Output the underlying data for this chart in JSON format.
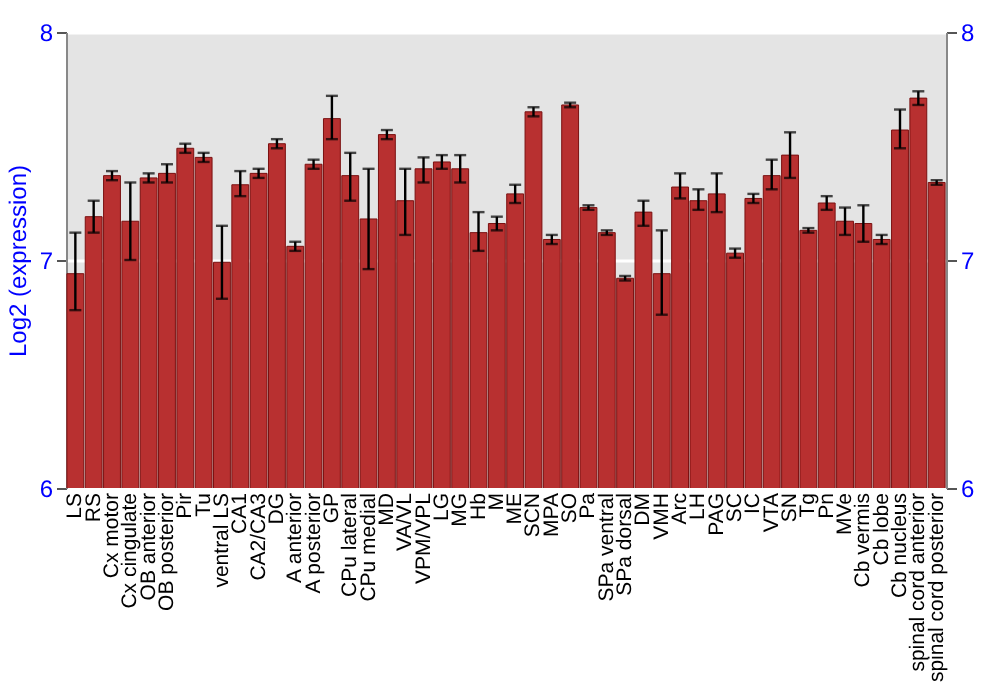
{
  "chart_data": {
    "type": "bar",
    "ylabel": "Log2 (expression)",
    "categories": [
      "LS",
      "RS",
      "Cx motor",
      "Cx cingulate",
      "OB anterior",
      "OB posterior",
      "Pir",
      "Tu",
      "ventral LS",
      "CA1",
      "CA2/CA3",
      "DG",
      "A anterior",
      "A posterior",
      "GP",
      "CPu lateral",
      "CPu medial",
      "MD",
      "VA/VL",
      "VPM/VPL",
      "LG",
      "MG",
      "Hb",
      "M",
      "ME",
      "SCN",
      "MPA",
      "SO",
      "Pa",
      "SPa ventral",
      "SPa dorsal",
      "DM",
      "VMH",
      "Arc",
      "LH",
      "PAG",
      "SC",
      "IC",
      "VTA",
      "SN",
      "Tg",
      "Pn",
      "MVe",
      "Cb vermis",
      "Cb lobe",
      "Cb nucleus",
      "spinal cord anterior",
      "spinal cord posterior"
    ],
    "values": [
      6.94,
      7.19,
      7.37,
      7.17,
      7.36,
      7.38,
      7.49,
      7.45,
      6.99,
      7.33,
      7.38,
      7.51,
      7.06,
      7.42,
      7.62,
      7.37,
      7.18,
      7.55,
      7.26,
      7.4,
      7.43,
      7.4,
      7.12,
      7.16,
      7.29,
      7.65,
      7.09,
      7.68,
      7.23,
      7.12,
      6.92,
      7.21,
      6.94,
      7.32,
      7.26,
      7.29,
      7.03,
      7.27,
      7.37,
      7.46,
      7.13,
      7.25,
      7.17,
      7.16,
      7.09,
      7.57,
      7.71,
      7.34
    ],
    "errors": [
      [
        6.78,
        7.12
      ],
      [
        7.12,
        7.26
      ],
      0.02,
      [
        7.0,
        7.34
      ],
      0.02,
      [
        7.34,
        7.42
      ],
      0.02,
      0.02,
      [
        6.83,
        7.15
      ],
      [
        7.28,
        7.39
      ],
      0.02,
      0.02,
      0.02,
      0.02,
      [
        7.53,
        7.72
      ],
      [
        7.26,
        7.47
      ],
      [
        6.96,
        7.4
      ],
      0.02,
      [
        7.11,
        7.4
      ],
      [
        7.34,
        7.45
      ],
      [
        7.4,
        7.46
      ],
      [
        7.34,
        7.46
      ],
      [
        7.04,
        7.21
      ],
      [
        7.13,
        7.19
      ],
      [
        7.25,
        7.33
      ],
      0.02,
      0.02,
      0.01,
      0.01,
      0.01,
      0.01,
      [
        7.15,
        7.26
      ],
      [
        6.76,
        7.13
      ],
      [
        7.27,
        7.38
      ],
      [
        7.22,
        7.31
      ],
      [
        7.21,
        7.38
      ],
      0.02,
      0.02,
      [
        7.31,
        7.44
      ],
      [
        7.36,
        7.56
      ],
      0.01,
      [
        7.22,
        7.28
      ],
      [
        7.11,
        7.23
      ],
      [
        7.08,
        7.24
      ],
      0.02,
      [
        7.49,
        7.66
      ],
      0.03,
      0.01
    ],
    "color": "#b83030",
    "ylim": [
      6,
      8
    ],
    "yticks": [
      6,
      7,
      8
    ],
    "y2lim": [
      6,
      8
    ],
    "y2ticks": [
      6,
      7,
      8
    ],
    "grid": "y"
  }
}
